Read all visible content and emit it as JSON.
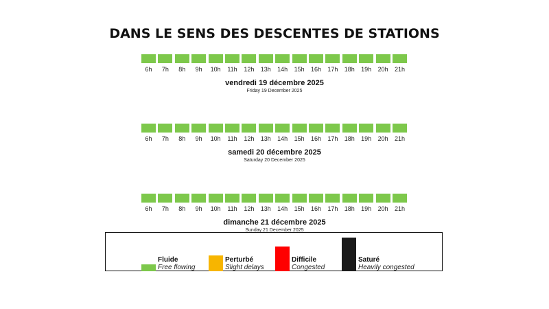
{
  "title": "DANS LE SENS DES DESCENTES DE STATIONS",
  "chart_data": {
    "type": "heatmap",
    "hours": [
      "6h",
      "7h",
      "8h",
      "9h",
      "10h",
      "11h",
      "12h",
      "13h",
      "14h",
      "15h",
      "16h",
      "17h",
      "18h",
      "19h",
      "20h",
      "21h"
    ],
    "days": [
      {
        "label_fr": "vendredi 19 décembre 2025",
        "label_en": "Friday 19 December 2025",
        "status": [
          "Fluide",
          "Fluide",
          "Fluide",
          "Fluide",
          "Fluide",
          "Fluide",
          "Fluide",
          "Fluide",
          "Fluide",
          "Fluide",
          "Fluide",
          "Fluide",
          "Fluide",
          "Fluide",
          "Fluide",
          "Fluide"
        ]
      },
      {
        "label_fr": "samedi 20 décembre 2025",
        "label_en": "Saturday 20 December 2025",
        "status": [
          "Fluide",
          "Fluide",
          "Fluide",
          "Fluide",
          "Fluide",
          "Fluide",
          "Fluide",
          "Fluide",
          "Fluide",
          "Fluide",
          "Fluide",
          "Fluide",
          "Fluide",
          "Fluide",
          "Fluide",
          "Fluide"
        ]
      },
      {
        "label_fr": "dimanche 21 décembre 2025",
        "label_en": "Sunday 21 December 2025",
        "status": [
          "Fluide",
          "Fluide",
          "Fluide",
          "Fluide",
          "Fluide",
          "Fluide",
          "Fluide",
          "Fluide",
          "Fluide",
          "Fluide",
          "Fluide",
          "Fluide",
          "Fluide",
          "Fluide",
          "Fluide",
          "Fluide"
        ]
      }
    ],
    "legend": [
      {
        "key": "Fluide",
        "label_fr": "Fluide",
        "label_en": "Free flowing",
        "color": "#7dc84b",
        "level": 1
      },
      {
        "key": "Perturbé",
        "label_fr": "Perturbé",
        "label_en": "Slight delays",
        "color": "#f7b500",
        "level": 2
      },
      {
        "key": "Difficile",
        "label_fr": "Difficile",
        "label_en": "Congested",
        "color": "#ff0000",
        "level": 3
      },
      {
        "key": "Saturé",
        "label_fr": "Saturé",
        "label_en": "Heavily congested",
        "color": "#1a1a1a",
        "level": 4
      }
    ]
  }
}
